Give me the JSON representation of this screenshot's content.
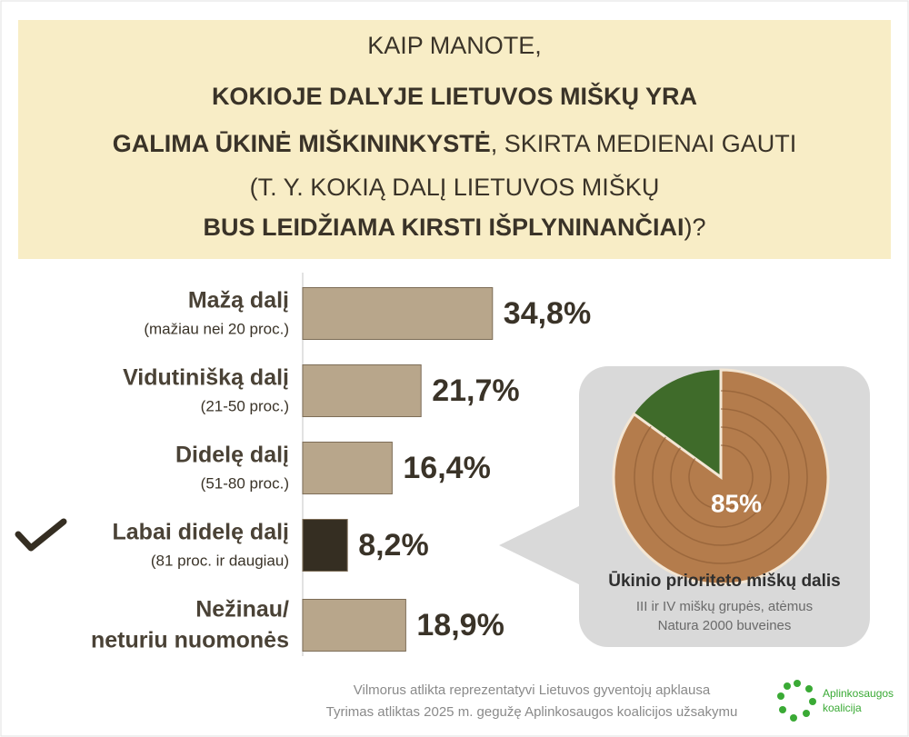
{
  "header": {
    "lines": [
      [
        {
          "text": "KAIP MANOTE,",
          "bold": false
        }
      ],
      [
        {
          "text": "KOKIOJE DALYJE LIETUVOS MIŠKŲ YRA",
          "bold": true
        }
      ],
      [
        {
          "text": "GALIMA ŪKINĖ MIŠKININKYSTĖ",
          "bold": true
        },
        {
          "text": ", SKIRTA MEDIENAI GAUTI",
          "bold": false
        }
      ],
      [
        {
          "text": "(T. Y. KOKIĄ DALĮ LIETUVOS MIŠKŲ",
          "bold": false
        }
      ],
      [
        {
          "text": "BUS LEIDŽIAMA KIRSTI IŠPLYNINANČIAI",
          "bold": true
        },
        {
          "text": ")?",
          "bold": false
        }
      ]
    ]
  },
  "chart_data": [
    {
      "type": "bar",
      "orientation": "horizontal",
      "categories": [
        "Mažą dalį",
        "Vidutinišką dalį",
        "Didelę dalį",
        "Labai didelę dalį",
        [
          "Nežinau/",
          "neturiu nuomonės"
        ]
      ],
      "category_notes": [
        "(mažiau nei 20 proc.)",
        "(21-50 proc.)",
        "(51-80 proc.)",
        "(81 proc. ir daugiau)",
        null
      ],
      "values": [
        34.8,
        21.7,
        16.4,
        8.2,
        18.9
      ],
      "value_labels": [
        "34,8%",
        "21,7%",
        "16,4%",
        "8,2%",
        "18,9%"
      ],
      "colors": [
        "#b8a68b",
        "#b8a68b",
        "#b8a68b",
        "#352e22",
        "#b8a68b"
      ]
    },
    {
      "type": "pie",
      "values": [
        85
      ],
      "value_labels": [
        "85%"
      ],
      "color": "#b47c4c",
      "rest_color": "#3f6b2a",
      "title": "Ūkinio prioriteto miškų dalis",
      "subtitle": [
        "III ir IV miškų grupės, atėmus",
        "Natura 2000 buveines"
      ]
    }
  ],
  "footer": {
    "lines": [
      "Vilmorus atlikta reprezentatyvi Lietuvos gyventojų apklausa",
      "Tyrimas atliktas 2025 m. gegužę  Aplinkosaugos koalicijos užsakymu"
    ],
    "logo": [
      "Aplinkosaugos",
      "koalicija"
    ]
  }
}
